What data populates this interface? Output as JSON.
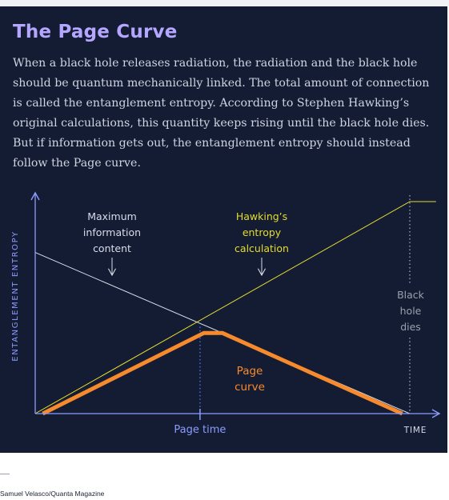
{
  "header": {
    "title": "The Page Curve",
    "description": "When a black hole releases radiation, the radiation and the black hole should be quantum mechanically linked. The total amount of connection is called the entanglement entropy. According to Stephen Hawking’s original calculations, this quantity keeps rising until the black hole dies. But if information gets out, the entanglement entropy should instead follow the Page curve."
  },
  "chart_data": {
    "type": "line",
    "xlabel": "TIME",
    "ylabel": "ENTANGLEMENT ENTROPY",
    "xlim": [
      0,
      1
    ],
    "ylim": [
      0,
      1
    ],
    "grid": false,
    "series": [
      {
        "name": "Maximum information content",
        "color": "#d9dcea",
        "points": [
          [
            0,
            0.76
          ],
          [
            1,
            0
          ]
        ]
      },
      {
        "name": "Hawking’s entropy calculation",
        "color": "#e5dc2e",
        "points": [
          [
            0,
            0
          ],
          [
            1,
            1
          ],
          [
            1.07,
            1
          ]
        ]
      },
      {
        "name": "Page curve",
        "color": "#f78a2d",
        "points": [
          [
            0.02,
            0
          ],
          [
            0.45,
            0.38
          ],
          [
            0.5,
            0.38
          ],
          [
            0.98,
            0
          ]
        ]
      }
    ],
    "markers": {
      "page_time": {
        "x": 0.44,
        "label": "Page time"
      },
      "black_hole_dies": {
        "x": 1.0
      }
    },
    "annotations": {
      "maximum": [
        "Maximum",
        "information",
        "content"
      ],
      "hawking": [
        "Hawking’s",
        "entropy",
        "calculation"
      ],
      "page_curve": [
        "Page",
        "curve"
      ],
      "black_hole": [
        "Black",
        "hole",
        "dies"
      ]
    },
    "colors": {
      "axis": "#8d9bff",
      "page_time_marker": "#4e72e6",
      "annotation_text": "#d9dcea",
      "dies_text": "#9aa0ad"
    }
  },
  "footer": {
    "credit": "Samuel Velasco/Quanta Magazine"
  }
}
